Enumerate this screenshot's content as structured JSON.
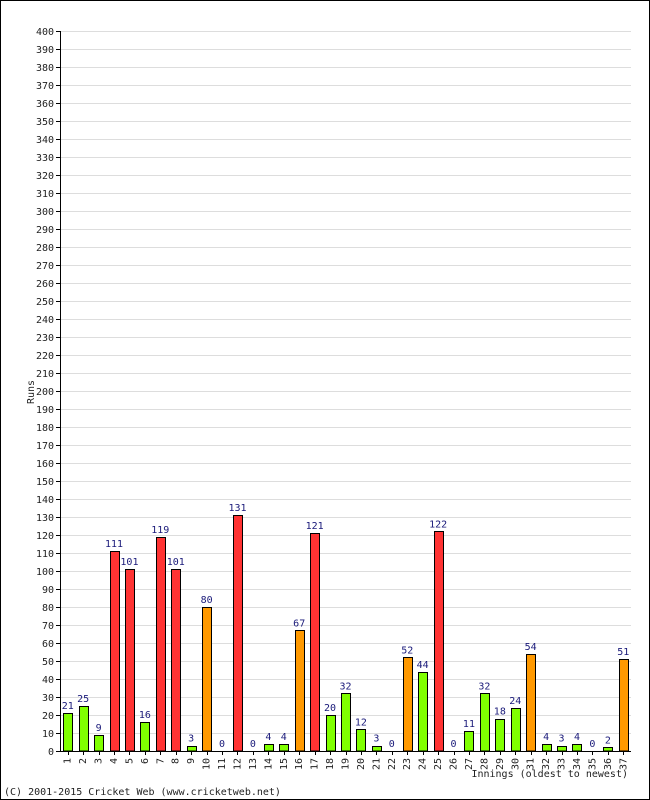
{
  "chart_data": {
    "type": "bar",
    "ylabel": "Runs",
    "xlabel": "Innings (oldest to newest)",
    "ylim": [
      0,
      400
    ],
    "ytick_step": 10,
    "grid": true,
    "categories": [
      "1",
      "2",
      "3",
      "4",
      "5",
      "6",
      "7",
      "8",
      "9",
      "10",
      "11",
      "12",
      "13",
      "14",
      "15",
      "16",
      "17",
      "18",
      "19",
      "20",
      "21",
      "22",
      "23",
      "24",
      "25",
      "26",
      "27",
      "28",
      "29",
      "30",
      "31",
      "32",
      "33",
      "34",
      "35",
      "36",
      "37"
    ],
    "values": [
      21,
      25,
      9,
      111,
      101,
      16,
      119,
      101,
      3,
      80,
      0,
      131,
      0,
      4,
      4,
      67,
      121,
      20,
      32,
      12,
      3,
      0,
      52,
      44,
      122,
      0,
      11,
      32,
      18,
      24,
      54,
      4,
      3,
      4,
      0,
      2,
      51
    ],
    "bar_colors": [
      "#80ff00",
      "#80ff00",
      "#80ff00",
      "#ff3333",
      "#ff3333",
      "#80ff00",
      "#ff3333",
      "#ff3333",
      "#80ff00",
      "#ff9900",
      "#80ff00",
      "#ff3333",
      "#80ff00",
      "#80ff00",
      "#80ff00",
      "#ff9900",
      "#ff3333",
      "#80ff00",
      "#80ff00",
      "#80ff00",
      "#80ff00",
      "#80ff00",
      "#ff9900",
      "#80ff00",
      "#ff3333",
      "#80ff00",
      "#80ff00",
      "#80ff00",
      "#80ff00",
      "#80ff00",
      "#ff9900",
      "#80ff00",
      "#80ff00",
      "#80ff00",
      "#80ff00",
      "#80ff00",
      "#ff9900"
    ]
  },
  "footer": {
    "copyright": "(C) 2001-2015 Cricket Web (www.cricketweb.net)"
  }
}
